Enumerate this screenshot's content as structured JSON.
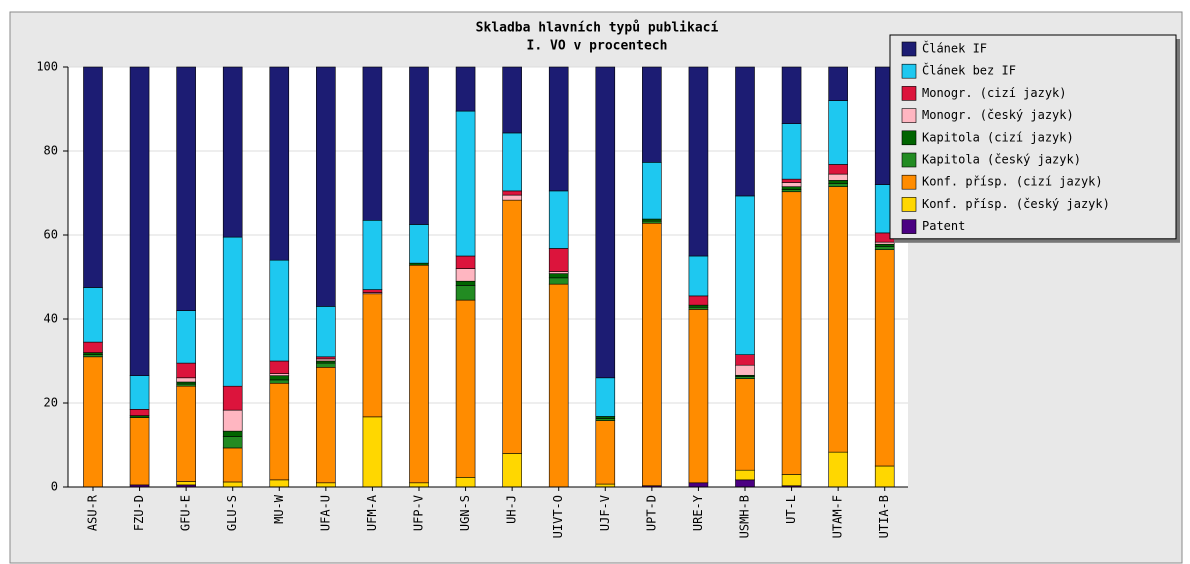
{
  "chart_data": {
    "type": "stacked_bar",
    "title": "Skladba hlavních typů publikací",
    "subtitle": "I. VO v procentech",
    "categories": [
      "ASU-R",
      "FZU-D",
      "GFU-E",
      "GLU-S",
      "MU-W",
      "UFA-U",
      "UFM-A",
      "UFP-V",
      "UGN-S",
      "UH-J",
      "UIVT-O",
      "UJF-V",
      "UPT-D",
      "URE-Y",
      "USMH-B",
      "UT-L",
      "UTAM-F",
      "UTIA-B"
    ],
    "series": [
      {
        "name": "Článek IF",
        "color": "#1c1c73",
        "values": [
          52.5,
          73.5,
          58,
          40.5,
          46,
          57,
          36.5,
          37.5,
          10.5,
          15.7,
          29.5,
          74,
          22.7,
          45,
          30.7,
          13.5,
          8,
          28
        ]
      },
      {
        "name": "Článek bez IF",
        "color": "#1ec8f0",
        "values": [
          13,
          8,
          12.5,
          35.5,
          24,
          12,
          16.5,
          9.2,
          34.5,
          13.8,
          13.7,
          9.2,
          13.5,
          9.5,
          37.8,
          13.2,
          15.2,
          11.5
        ]
      },
      {
        "name": "Monogr. (cizí jazyk)",
        "color": "#dc143c",
        "values": [
          2.5,
          1.5,
          3.5,
          5.7,
          3,
          0.5,
          0.7,
          0,
          3,
          1,
          5.5,
          0,
          0,
          2.2,
          2.5,
          0.8,
          2.3,
          2.2
        ]
      },
      {
        "name": "Monogr. (český jazyk)",
        "color": "#ffb6c1",
        "values": [
          0,
          0,
          1,
          5,
          0.5,
          0.5,
          0.3,
          0,
          3,
          1.2,
          0.5,
          0,
          0,
          0,
          2.4,
          1,
          1.5,
          0.5
        ]
      },
      {
        "name": "Kapitola (cizí jazyk)",
        "color": "#006400",
        "values": [
          0.5,
          0.5,
          0.5,
          1.3,
          1,
          0.5,
          0,
          0.5,
          1,
          0,
          1,
          0.5,
          0.5,
          0.5,
          0.3,
          0.7,
          0.7,
          0.5
        ]
      },
      {
        "name": "Kapitola (český jazyk)",
        "color": "#228b22",
        "values": [
          0.5,
          0,
          0.5,
          2.7,
          0.8,
          1,
          0,
          0,
          3.5,
          0,
          1.5,
          0.5,
          0.5,
          0.5,
          0.5,
          0.5,
          0.8,
          0.8
        ]
      },
      {
        "name": "Konf. přísp. (cizí jazyk)",
        "color": "#ff8c00",
        "values": [
          31,
          16,
          22.7,
          8.1,
          23,
          27.5,
          29.3,
          51.8,
          42.2,
          60.3,
          48.3,
          15.1,
          62.5,
          41.3,
          21.8,
          67.3,
          63.2,
          51.5
        ]
      },
      {
        "name": "Konf. přísp. (český jazyk)",
        "color": "#ffd700",
        "values": [
          0,
          0,
          0.8,
          1.2,
          1.7,
          1,
          16.7,
          1,
          2.3,
          8,
          0,
          0.7,
          0,
          0,
          2.3,
          2.7,
          8.3,
          5
        ]
      },
      {
        "name": "Patent",
        "color": "#4b0082",
        "values": [
          0,
          0.5,
          0.5,
          0,
          0,
          0,
          0,
          0,
          0,
          0,
          0,
          0,
          0.3,
          1,
          1.7,
          0.3,
          0,
          0
        ]
      }
    ],
    "ylim": [
      0,
      100
    ],
    "yticks": [
      0,
      20,
      40,
      60,
      80,
      100
    ],
    "grid": true,
    "legend": "upper right"
  }
}
